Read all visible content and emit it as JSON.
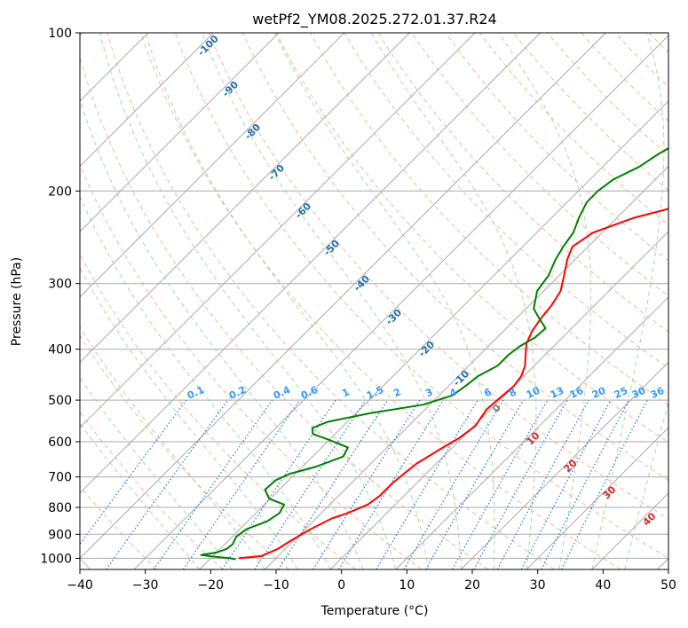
{
  "chart_data": {
    "type": "line",
    "title": "wetPf2_YM08.2025.272.01.37.R24",
    "xlabel": "Temperature (°C)",
    "ylabel": "Pressure (hPa)",
    "xlim": [
      -40,
      50
    ],
    "ylim": [
      1050,
      100
    ],
    "y_scale": "log",
    "grid": true,
    "x_ticks": [
      "−40",
      "−30",
      "−20",
      "−10",
      "0",
      "10",
      "20",
      "30",
      "40",
      "50"
    ],
    "x_tick_values": [
      -40,
      -30,
      -20,
      -10,
      0,
      10,
      20,
      30,
      40,
      50
    ],
    "y_ticks": [
      "100",
      "200",
      "300",
      "400",
      "500",
      "600",
      "700",
      "800",
      "900",
      "1000"
    ],
    "y_tick_values": [
      100,
      200,
      300,
      400,
      500,
      600,
      700,
      800,
      900,
      1000
    ],
    "series": [
      {
        "color": "#ff0000",
        "points": [
          [
            -15.7,
            1000
          ],
          [
            -12.6,
            990
          ],
          [
            -11.2,
            960
          ],
          [
            -10.3,
            920
          ],
          [
            -9.2,
            880
          ],
          [
            -7.6,
            840
          ],
          [
            -6.0,
            820
          ],
          [
            -4.2,
            790
          ],
          [
            -3.7,
            760
          ],
          [
            -3.7,
            720
          ],
          [
            -3.4,
            690
          ],
          [
            -3.0,
            660
          ],
          [
            -1.6,
            620
          ],
          [
            -0.4,
            590
          ],
          [
            0.2,
            560
          ],
          [
            -0.6,
            520
          ],
          [
            -0.4,
            500
          ],
          [
            0.0,
            470
          ],
          [
            -0.4,
            450
          ],
          [
            -1.4,
            430
          ],
          [
            -3.0,
            410
          ],
          [
            -4.6,
            390
          ],
          [
            -5.6,
            370
          ],
          [
            -6.2,
            350
          ],
          [
            -6.6,
            330
          ],
          [
            -7.4,
            310
          ],
          [
            -9.2,
            290
          ],
          [
            -11.2,
            270
          ],
          [
            -12.4,
            255
          ],
          [
            -11.4,
            240
          ],
          [
            -7.4,
            225
          ],
          [
            -0.6,
            210
          ],
          [
            5.8,
            195
          ],
          [
            10.4,
            180
          ],
          [
            15.4,
            165
          ],
          [
            20.0,
            150
          ],
          [
            24.0,
            135
          ],
          [
            29.0,
            120
          ],
          [
            32.4,
            110
          ],
          [
            35.4,
            100
          ]
        ]
      },
      {
        "color": "#008000",
        "points": [
          [
            -16.0,
            1005
          ],
          [
            -17.0,
            1000
          ],
          [
            -20.0,
            992
          ],
          [
            -22.0,
            985
          ],
          [
            -20.0,
            975
          ],
          [
            -19.0,
            960
          ],
          [
            -18.8,
            940
          ],
          [
            -19.4,
            910
          ],
          [
            -19.0,
            880
          ],
          [
            -17.0,
            850
          ],
          [
            -16.4,
            820
          ],
          [
            -17.0,
            790
          ],
          [
            -20.2,
            770
          ],
          [
            -22.2,
            740
          ],
          [
            -22.0,
            710
          ],
          [
            -20.8,
            690
          ],
          [
            -18.0,
            670
          ],
          [
            -15.3,
            640
          ],
          [
            -16.0,
            615
          ],
          [
            -20.0,
            595
          ],
          [
            -23.4,
            580
          ],
          [
            -24.4,
            565
          ],
          [
            -23.0,
            550
          ],
          [
            -18.0,
            530
          ],
          [
            -11.0,
            510
          ],
          [
            -8.0,
            490
          ],
          [
            -7.4,
            470
          ],
          [
            -7.0,
            450
          ],
          [
            -5.6,
            430
          ],
          [
            -5.6,
            410
          ],
          [
            -5.2,
            395
          ],
          [
            -4.2,
            380
          ],
          [
            -4.0,
            365
          ],
          [
            -6.4,
            350
          ],
          [
            -8.8,
            335
          ],
          [
            -11.0,
            310
          ],
          [
            -11.6,
            290
          ],
          [
            -13.0,
            270
          ],
          [
            -13.8,
            255
          ],
          [
            -14.4,
            240
          ],
          [
            -15.8,
            225
          ],
          [
            -17.0,
            210
          ],
          [
            -17.0,
            200
          ],
          [
            -16.4,
            190
          ],
          [
            -14.4,
            180
          ],
          [
            -13.4,
            170
          ],
          [
            -11.8,
            160
          ],
          [
            -10.4,
            150
          ],
          [
            -9.0,
            140
          ],
          [
            -7.2,
            130
          ],
          [
            -4.8,
            120
          ],
          [
            -2.2,
            110
          ],
          [
            -0.6,
            103
          ],
          [
            -0.3,
            100
          ]
        ]
      }
    ],
    "dry_adiabat_labels": [
      "-100",
      "-90",
      "-80",
      "-70",
      "-60",
      "-50",
      "-40",
      "-30",
      "-20",
      "-10",
      "0",
      "10",
      "20",
      "30",
      "40"
    ],
    "mixing_ratio_labels": [
      "0.1",
      "0.2",
      "0.4",
      "0.6",
      "1",
      "1.5",
      "2",
      "3",
      "4",
      "6",
      "8",
      "10",
      "13",
      "16",
      "20",
      "25",
      "30",
      "36"
    ],
    "colors": {
      "isotherm": "#aaaaaa",
      "dry_adiabat": "#f4a582",
      "moist_adiabat": "#98d39a",
      "mixing_ratio": "#1f77d4",
      "dry_adiabat_label_cold": "#1f6fb0",
      "dry_adiabat_label_warm": "#d62728",
      "mixing_ratio_label": "#3399ff",
      "zero_label": "#7f7f7f"
    }
  }
}
